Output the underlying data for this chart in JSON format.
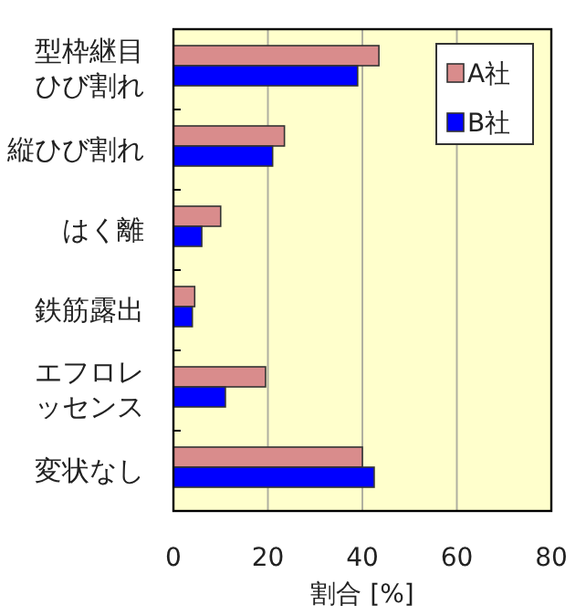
{
  "chart_data": {
    "type": "bar",
    "orientation": "horizontal",
    "xlabel": "割合 [%]",
    "categories": [
      "型枠継目ひび割れ",
      "縦ひび割れ",
      "はく離",
      "鉄筋露出",
      "エフロレッセンス",
      "変状なし"
    ],
    "series": [
      {
        "name": "A社",
        "color": "#d98c8c",
        "values": [
          43.5,
          23.5,
          10,
          4.5,
          19.5,
          40
        ]
      },
      {
        "name": "B社",
        "color": "#0000ff",
        "values": [
          39,
          21,
          6,
          4,
          11,
          42.5
        ]
      }
    ],
    "xlim": [
      0,
      80
    ],
    "xticks": [
      0,
      20,
      40,
      60,
      80
    ],
    "grid": "x",
    "legend": "top right"
  }
}
